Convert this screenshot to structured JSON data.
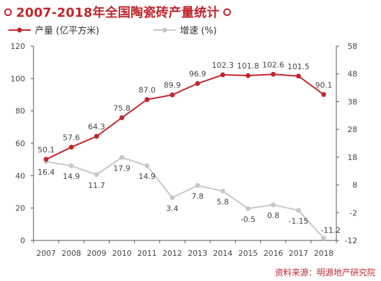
{
  "header": {
    "title": "2007-2018年全国陶瓷砖产量统计"
  },
  "source": "资料来源：明源地产研究院",
  "colors": {
    "accent": "#c0262d",
    "secondary": "#c8c8c8"
  },
  "chart_data": {
    "type": "line",
    "title": "2007-2018年全国陶瓷砖产量统计",
    "categories": [
      "2007",
      "2008",
      "2009",
      "2010",
      "2011",
      "2012",
      "2013",
      "2014",
      "2015",
      "2016",
      "2017",
      "2018"
    ],
    "series": [
      {
        "name": "产量 (亿平方米)",
        "axis": "left",
        "color": "#c0262d",
        "values": [
          50.1,
          57.6,
          64.3,
          75.8,
          87.0,
          89.9,
          96.9,
          102.3,
          101.8,
          102.6,
          101.5,
          90.1
        ],
        "labels": [
          "50.1",
          "57.6",
          "64.3",
          "75.8",
          "87.0",
          "89.9",
          "96.9",
          "102.3",
          "101.8",
          "102.6",
          "101.5",
          "90.1"
        ]
      },
      {
        "name": "增速 (%)",
        "axis": "right",
        "color": "#c8c8c8",
        "values": [
          16.4,
          14.9,
          11.7,
          17.9,
          14.9,
          3.4,
          7.8,
          5.8,
          -0.5,
          0.8,
          -1.15,
          -11.2
        ],
        "labels": [
          "16.4",
          "14.9",
          "11.7",
          "17.9",
          "14.9",
          "3.4",
          "7.8",
          "5.8",
          "-0.5",
          "0.8",
          "-1.15",
          "-11.2"
        ]
      }
    ],
    "y_left": {
      "min": 0,
      "max": 120,
      "ticks": [
        0,
        20,
        40,
        60,
        80,
        100,
        120
      ]
    },
    "y_right": {
      "min": -12,
      "max": 58,
      "ticks": [
        -12,
        -2,
        8,
        18,
        28,
        38,
        48,
        58
      ]
    },
    "grid": false,
    "legend": "top-left"
  }
}
